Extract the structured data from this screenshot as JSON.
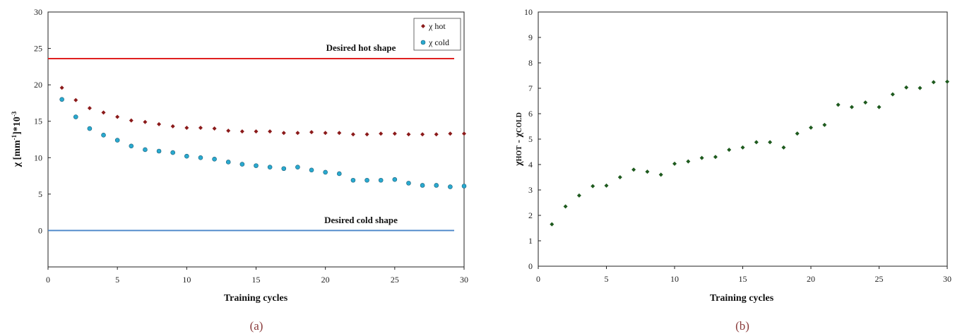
{
  "captions": {
    "a": "(a)",
    "b": "(b)"
  },
  "chart_data": [
    {
      "type": "scatter",
      "panel": "a",
      "xlabel": "Training cycles",
      "ylabel": {
        "base": "χ  [mm",
        "sup1": "-1",
        "mid": "]*10",
        "sup2": "-3"
      },
      "xlim": [
        0,
        30
      ],
      "ylim": [
        -5,
        30
      ],
      "xticks": [
        "0",
        "5",
        "10",
        "15",
        "20",
        "25",
        "30"
      ],
      "yticks": [
        "0",
        "5",
        "10",
        "15",
        "20",
        "25",
        "30"
      ],
      "legend": {
        "position": "top-right",
        "entries": [
          "χ hot",
          "χ cold"
        ]
      },
      "colors": {
        "hot": "#8b1a1a",
        "cold": "#29a9cf",
        "hot_line": "#e02020",
        "cold_line": "#4a86c8"
      },
      "reference_lines": [
        {
          "label": "Desired hot shape",
          "y": 23.6
        },
        {
          "label": "Desired cold shape",
          "y": 0
        }
      ],
      "x": [
        1,
        2,
        3,
        4,
        5,
        6,
        7,
        8,
        9,
        10,
        11,
        12,
        13,
        14,
        15,
        16,
        17,
        18,
        19,
        20,
        21,
        22,
        23,
        24,
        25,
        26,
        27,
        28,
        29,
        30
      ],
      "series": [
        {
          "name": "χ hot",
          "values": [
            19.6,
            17.9,
            16.8,
            16.2,
            15.6,
            15.1,
            14.9,
            14.6,
            14.3,
            14.1,
            14.1,
            14.0,
            13.7,
            13.6,
            13.6,
            13.6,
            13.4,
            13.4,
            13.5,
            13.4,
            13.4,
            13.2,
            13.2,
            13.3,
            13.3,
            13.2,
            13.2,
            13.2,
            13.3,
            13.3
          ]
        },
        {
          "name": "χ cold",
          "values": [
            18.0,
            15.6,
            14.0,
            13.1,
            12.4,
            11.6,
            11.1,
            10.9,
            10.7,
            10.2,
            10.0,
            9.8,
            9.4,
            9.1,
            8.9,
            8.7,
            8.5,
            8.7,
            8.3,
            8.0,
            7.8,
            6.9,
            6.9,
            6.9,
            7.0,
            6.5,
            6.2,
            6.2,
            6.0,
            6.1
          ]
        }
      ]
    },
    {
      "type": "scatter",
      "panel": "b",
      "xlabel": "Training cycles",
      "ylabel": "χHOT - χCOLD",
      "xlim": [
        0,
        30
      ],
      "ylim": [
        0,
        10
      ],
      "xticks": [
        "0",
        "5",
        "10",
        "15",
        "20",
        "25",
        "30"
      ],
      "yticks": [
        "0",
        "1",
        "2",
        "3",
        "4",
        "5",
        "6",
        "7",
        "8",
        "9",
        "10"
      ],
      "colors": {
        "points": "#1e5a1e"
      },
      "x": [
        1,
        2,
        3,
        4,
        5,
        6,
        7,
        8,
        9,
        10,
        11,
        12,
        13,
        14,
        15,
        16,
        17,
        18,
        19,
        20,
        21,
        22,
        23,
        24,
        25,
        26,
        27,
        28,
        29,
        30
      ],
      "series": [
        {
          "values": [
            1.65,
            2.35,
            2.78,
            3.15,
            3.17,
            3.5,
            3.8,
            3.72,
            3.6,
            4.03,
            4.12,
            4.26,
            4.3,
            4.58,
            4.67,
            4.88,
            4.88,
            4.67,
            5.22,
            5.45,
            5.56,
            6.35,
            6.26,
            6.44,
            6.26,
            6.76,
            7.03,
            7.01,
            7.24,
            7.26
          ]
        }
      ]
    }
  ]
}
